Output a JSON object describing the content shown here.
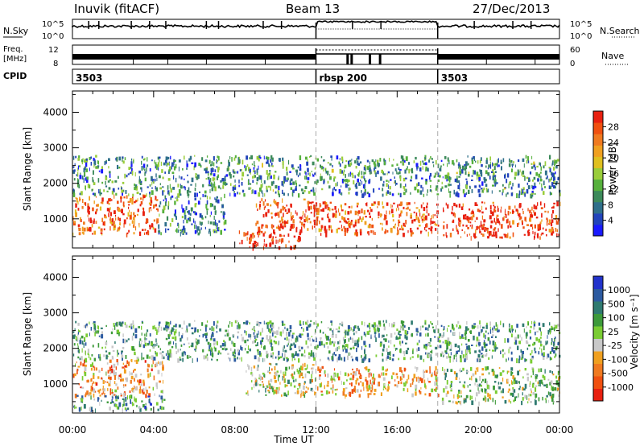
{
  "header": {
    "station": "Inuvik (fitACF)",
    "beam": "Beam 13",
    "date": "27/Dec/2013"
  },
  "top_panels": {
    "nsky": {
      "label": "N.Sky",
      "ticks": [
        "10^5",
        "10^0"
      ],
      "right_label": "N.Search",
      "right_ticks": [
        "10^5",
        "10^0"
      ]
    },
    "freq": {
      "label_line1": "Freq.",
      "label_line2": "[MHz]",
      "ticks": [
        "12",
        "8"
      ],
      "right_label": "Nave",
      "right_ticks": [
        "60",
        "0"
      ]
    },
    "cpid": {
      "label": "CPID",
      "segments": [
        {
          "label": "3503",
          "start_hour": 0,
          "end_hour": 12
        },
        {
          "label": "rbsp 200",
          "start_hour": 12,
          "end_hour": 18
        },
        {
          "label": "3503",
          "start_hour": 18,
          "end_hour": 24
        }
      ]
    }
  },
  "chart_data": [
    {
      "type": "heatmap",
      "name": "power",
      "ylabel": "Slant Range [km]",
      "xlabel": "",
      "xlim_hours": [
        0,
        24
      ],
      "ylim": [
        180,
        4600
      ],
      "ytick_values": [
        1000,
        2000,
        3000,
        4000
      ],
      "colorbar": {
        "title": "Power [dB]",
        "ticks": [
          "4",
          "8",
          "12",
          "16",
          "20",
          "24",
          "28"
        ],
        "colors": [
          "#1a1aff",
          "#2244bb",
          "#2f6f8a",
          "#3c8a5a",
          "#56b03c",
          "#9acd3a",
          "#e0c020",
          "#f0a020",
          "#f07a20",
          "#f05010",
          "#e82010"
        ]
      },
      "regions": [
        {
          "t0": 0,
          "t1": 4.2,
          "r0": 600,
          "r1": 1700,
          "level": 0.85
        },
        {
          "t0": 4.2,
          "t1": 7.5,
          "r0": 600,
          "r1": 1700,
          "level": 0.25
        },
        {
          "t0": 9,
          "t1": 12,
          "r0": 700,
          "r1": 1600,
          "level": 0.9
        },
        {
          "t0": 8.2,
          "t1": 11.2,
          "r0": 200,
          "r1": 700,
          "level": 0.95
        },
        {
          "t0": 12,
          "t1": 18,
          "r0": 600,
          "r1": 1500,
          "level": 0.85
        },
        {
          "t0": 18.2,
          "t1": 24,
          "r0": 500,
          "r1": 1500,
          "level": 0.95
        },
        {
          "t0": 0,
          "t1": 24,
          "r0": 1700,
          "r1": 2800,
          "level": 0.3
        }
      ]
    },
    {
      "type": "heatmap",
      "name": "velocity",
      "ylabel": "Slant Range [km]",
      "xlabel": "Time UT",
      "xlim_hours": [
        0,
        24
      ],
      "ylim": [
        180,
        4600
      ],
      "ytick_values": [
        1000,
        2000,
        3000,
        4000
      ],
      "xticks": [
        "00:00",
        "04:00",
        "08:00",
        "12:00",
        "16:00",
        "20:00",
        "00:00"
      ],
      "colorbar": {
        "title": "Velocity [m s⁻¹]",
        "ticks": [
          "1000",
          "500",
          "100",
          "25",
          "-25",
          "-100",
          "-500",
          "-1000"
        ],
        "colors": [
          "#2233cc",
          "#2c5aa0",
          "#2f7a70",
          "#3d9a3a",
          "#7acc33",
          "#c8c8c8",
          "#f0a020",
          "#f07a20",
          "#f05010",
          "#e82010"
        ]
      },
      "regions": [
        {
          "t0": 0,
          "t1": 4.5,
          "r0": 700,
          "r1": 1700,
          "level": 0.7
        },
        {
          "t0": 0,
          "t1": 4.5,
          "r0": 300,
          "r1": 700,
          "level": 0.3
        },
        {
          "t0": 8.5,
          "t1": 12,
          "r0": 700,
          "r1": 1600,
          "level": 0.5
        },
        {
          "t0": 12,
          "t1": 18,
          "r0": 700,
          "r1": 1500,
          "level": 0.65
        },
        {
          "t0": 18.2,
          "t1": 24,
          "r0": 500,
          "r1": 1500,
          "level": 0.45
        },
        {
          "t0": 0,
          "t1": 24,
          "r0": 1700,
          "r1": 2800,
          "level": 0.35
        }
      ]
    }
  ]
}
